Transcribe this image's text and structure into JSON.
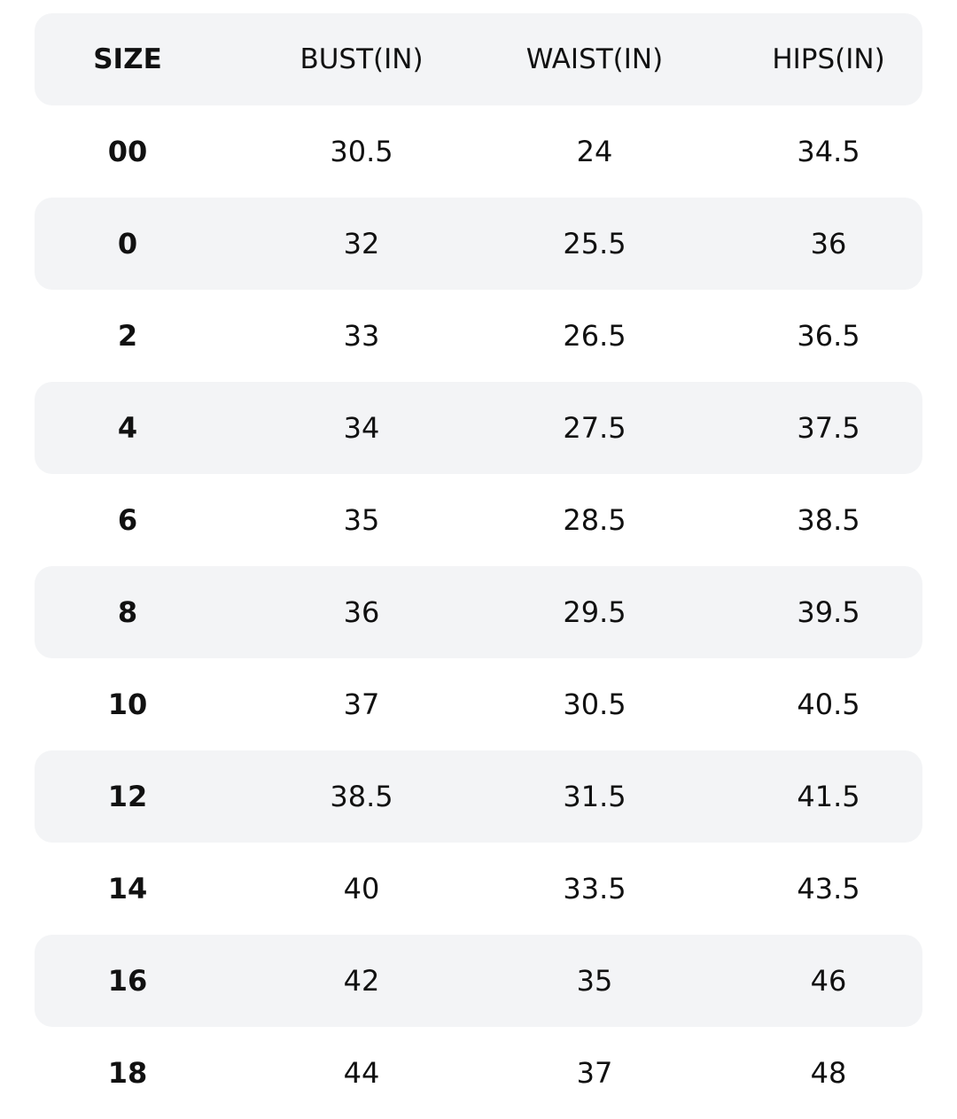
{
  "table": {
    "header": [
      "SIZE",
      "BUST(IN)",
      "WAIST(IN)",
      "HIPS(IN)"
    ],
    "rows": [
      [
        "00",
        "30.5",
        "24",
        "34.5"
      ],
      [
        "0",
        "32",
        "25.5",
        "36"
      ],
      [
        "2",
        "33",
        "26.5",
        "36.5"
      ],
      [
        "4",
        "34",
        "27.5",
        "37.5"
      ],
      [
        "6",
        "35",
        "28.5",
        "38.5"
      ],
      [
        "8",
        "36",
        "29.5",
        "39.5"
      ],
      [
        "10",
        "37",
        "30.5",
        "40.5"
      ],
      [
        "12",
        "38.5",
        "31.5",
        "41.5"
      ],
      [
        "14",
        "40",
        "33.5",
        "43.5"
      ],
      [
        "16",
        "42",
        "35",
        "46"
      ],
      [
        "18",
        "44",
        "37",
        "48"
      ]
    ]
  }
}
